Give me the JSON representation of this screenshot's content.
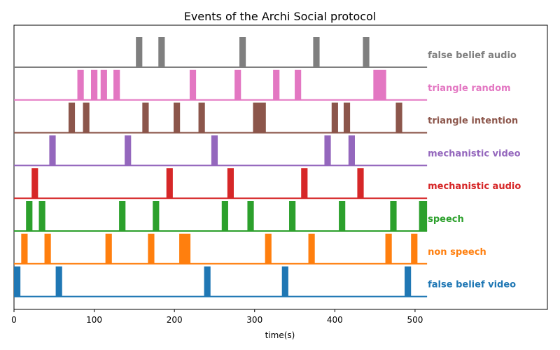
{
  "chart_data": {
    "type": "event-raster",
    "title": "Events of the Archi Social protocol",
    "xlabel": "time(s)",
    "ylabel": "",
    "xlim": [
      0,
      665
    ],
    "xticks": [
      0,
      100,
      200,
      300,
      400,
      500
    ],
    "series": [
      {
        "name": "false belief audio",
        "color": "#7f7f7f",
        "events": [
          [
            152,
            160
          ],
          [
            180,
            188
          ],
          [
            281,
            289
          ],
          [
            373,
            381
          ],
          [
            435,
            443
          ]
        ]
      },
      {
        "name": "triangle random",
        "color": "#e377c2",
        "events": [
          [
            79,
            87
          ],
          [
            96,
            104
          ],
          [
            108,
            116
          ],
          [
            124,
            132
          ],
          [
            219,
            227
          ],
          [
            275,
            283
          ],
          [
            323,
            331
          ],
          [
            350,
            358
          ],
          [
            448,
            464
          ]
        ]
      },
      {
        "name": "triangle intention",
        "color": "#8c564b",
        "events": [
          [
            68,
            76
          ],
          [
            86,
            94
          ],
          [
            160,
            168
          ],
          [
            199,
            207
          ],
          [
            230,
            238
          ],
          [
            298,
            314
          ],
          [
            396,
            404
          ],
          [
            411,
            419
          ],
          [
            476,
            484
          ]
        ]
      },
      {
        "name": "mechanistic video",
        "color": "#9467bd",
        "events": [
          [
            44,
            52
          ],
          [
            138,
            146
          ],
          [
            246,
            254
          ],
          [
            387,
            395
          ],
          [
            417,
            425
          ]
        ]
      },
      {
        "name": "mechanistic audio",
        "color": "#d62728",
        "events": [
          [
            22,
            30
          ],
          [
            190,
            198
          ],
          [
            266,
            274
          ],
          [
            358,
            366
          ],
          [
            428,
            436
          ]
        ]
      },
      {
        "name": "speech",
        "color": "#2ca02c",
        "events": [
          [
            15,
            23
          ],
          [
            31,
            39
          ],
          [
            131,
            139
          ],
          [
            173,
            181
          ],
          [
            259,
            267
          ],
          [
            291,
            299
          ],
          [
            343,
            351
          ],
          [
            405,
            413
          ],
          [
            469,
            477
          ],
          [
            505,
            515
          ]
        ]
      },
      {
        "name": "non speech",
        "color": "#ff7f0e",
        "events": [
          [
            9,
            17
          ],
          [
            38,
            46
          ],
          [
            114,
            122
          ],
          [
            167,
            175
          ],
          [
            206,
            220
          ],
          [
            313,
            321
          ],
          [
            367,
            375
          ],
          [
            463,
            471
          ],
          [
            495,
            503
          ]
        ]
      },
      {
        "name": "false belief video",
        "color": "#1f77b4",
        "events": [
          [
            0,
            8
          ],
          [
            52,
            60
          ],
          [
            237,
            245
          ],
          [
            334,
            342
          ],
          [
            487,
            495
          ]
        ]
      }
    ]
  }
}
